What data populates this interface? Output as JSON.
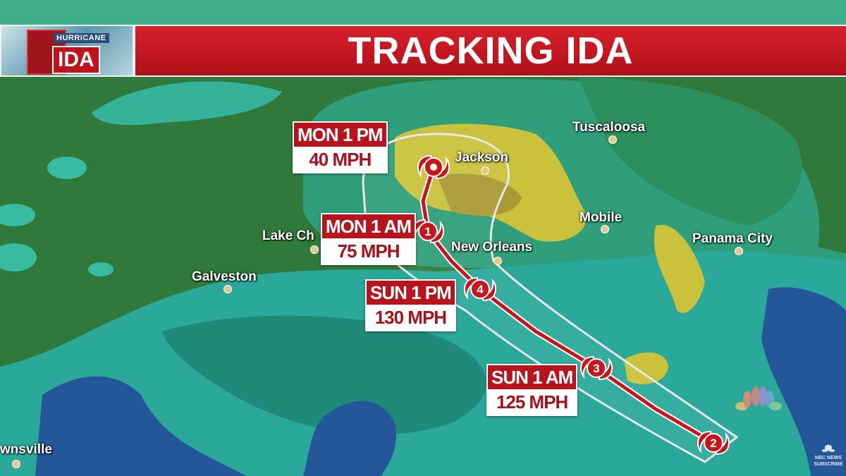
{
  "banner": {
    "logo_top": "HURRICANE",
    "logo_main": "IDA",
    "title": "TRACKING IDA"
  },
  "forecast_points": [
    {
      "time": "MON 1 PM",
      "wind": "40 MPH",
      "category": ""
    },
    {
      "time": "MON 1 AM",
      "wind": "75 MPH",
      "category": "1"
    },
    {
      "time": "SUN 1 PM",
      "wind": "130 MPH",
      "category": "4"
    },
    {
      "time": "SUN 1 AM",
      "wind": "125 MPH",
      "category": "3"
    },
    {
      "time": "",
      "wind": "",
      "category": "2"
    }
  ],
  "cities": [
    "Tuscaloosa",
    "Jackson",
    "Mobile",
    "Panama City",
    "New Orleans",
    "Lake Ch",
    "Galveston",
    "wnsville"
  ],
  "watermark": {
    "brand": "NBC NEWS",
    "sub": "SUBSCRIBE"
  },
  "colors": {
    "track": "#c8141d",
    "land": "#2f7a3a",
    "gulf": "#2aa99a",
    "deep_water": "#24569a",
    "rain_yellow": "#c9c23a"
  }
}
